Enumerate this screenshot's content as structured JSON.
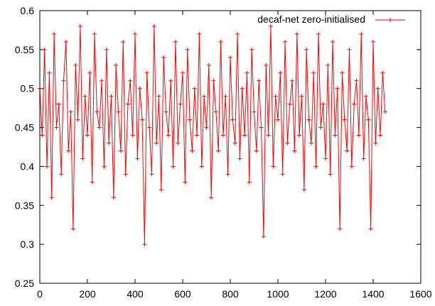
{
  "chart_data": {
    "type": "line",
    "title": "",
    "xlabel": "",
    "ylabel": "",
    "xlim": [
      0,
      1600
    ],
    "ylim": [
      0.25,
      0.6
    ],
    "x_ticks": [
      0,
      200,
      400,
      600,
      800,
      1000,
      1200,
      1400,
      1600
    ],
    "y_ticks": [
      0.25,
      0.3,
      0.35,
      0.4,
      0.45,
      0.5,
      0.55,
      0.6
    ],
    "x_tick_labels": [
      "0",
      "200",
      "400",
      "600",
      "800",
      "1000",
      "1200",
      "1400",
      "1600"
    ],
    "y_tick_labels": [
      "0.25",
      "0.3",
      "0.35",
      "0.4",
      "0.45",
      "0.5",
      "0.55",
      "0.6"
    ],
    "grid": false,
    "legend_position": "top-right",
    "series": [
      {
        "name": "decaf-net zero-initialised",
        "color": "#ff0000",
        "marker": "plus",
        "x_range": [
          0,
          1450
        ],
        "x_step": 10,
        "values": [
          0.5,
          0.44,
          0.55,
          0.4,
          0.52,
          0.36,
          0.57,
          0.45,
          0.48,
          0.39,
          0.51,
          0.56,
          0.42,
          0.47,
          0.32,
          0.53,
          0.46,
          0.58,
          0.41,
          0.49,
          0.44,
          0.52,
          0.38,
          0.57,
          0.47,
          0.45,
          0.51,
          0.4,
          0.55,
          0.43,
          0.49,
          0.36,
          0.53,
          0.47,
          0.42,
          0.56,
          0.39,
          0.48,
          0.51,
          0.44,
          0.57,
          0.41,
          0.5,
          0.46,
          0.3,
          0.52,
          0.45,
          0.39,
          0.58,
          0.43,
          0.49,
          0.37,
          0.54,
          0.47,
          0.44,
          0.51,
          0.4,
          0.56,
          0.43,
          0.48,
          0.52,
          0.38,
          0.55,
          0.46,
          0.42,
          0.5,
          0.44,
          0.57,
          0.4,
          0.49,
          0.45,
          0.53,
          0.36,
          0.51,
          0.47,
          0.42,
          0.56,
          0.44,
          0.49,
          0.39,
          0.54,
          0.46,
          0.43,
          0.57,
          0.41,
          0.5,
          0.44,
          0.52,
          0.38,
          0.55,
          0.47,
          0.42,
          0.51,
          0.45,
          0.31,
          0.53,
          0.44,
          0.58,
          0.4,
          0.49,
          0.46,
          0.52,
          0.39,
          0.56,
          0.43,
          0.48,
          0.51,
          0.42,
          0.57,
          0.44,
          0.49,
          0.37,
          0.55,
          0.46,
          0.43,
          0.52,
          0.4,
          0.57,
          0.45,
          0.48,
          0.41,
          0.53,
          0.39,
          0.56,
          0.44,
          0.5,
          0.32,
          0.52,
          0.46,
          0.42,
          0.55,
          0.4,
          0.48,
          0.51,
          0.44,
          0.57,
          0.41,
          0.49,
          0.46,
          0.32,
          0.56,
          0.43,
          0.5,
          0.44,
          0.52,
          0.47
        ]
      }
    ]
  }
}
